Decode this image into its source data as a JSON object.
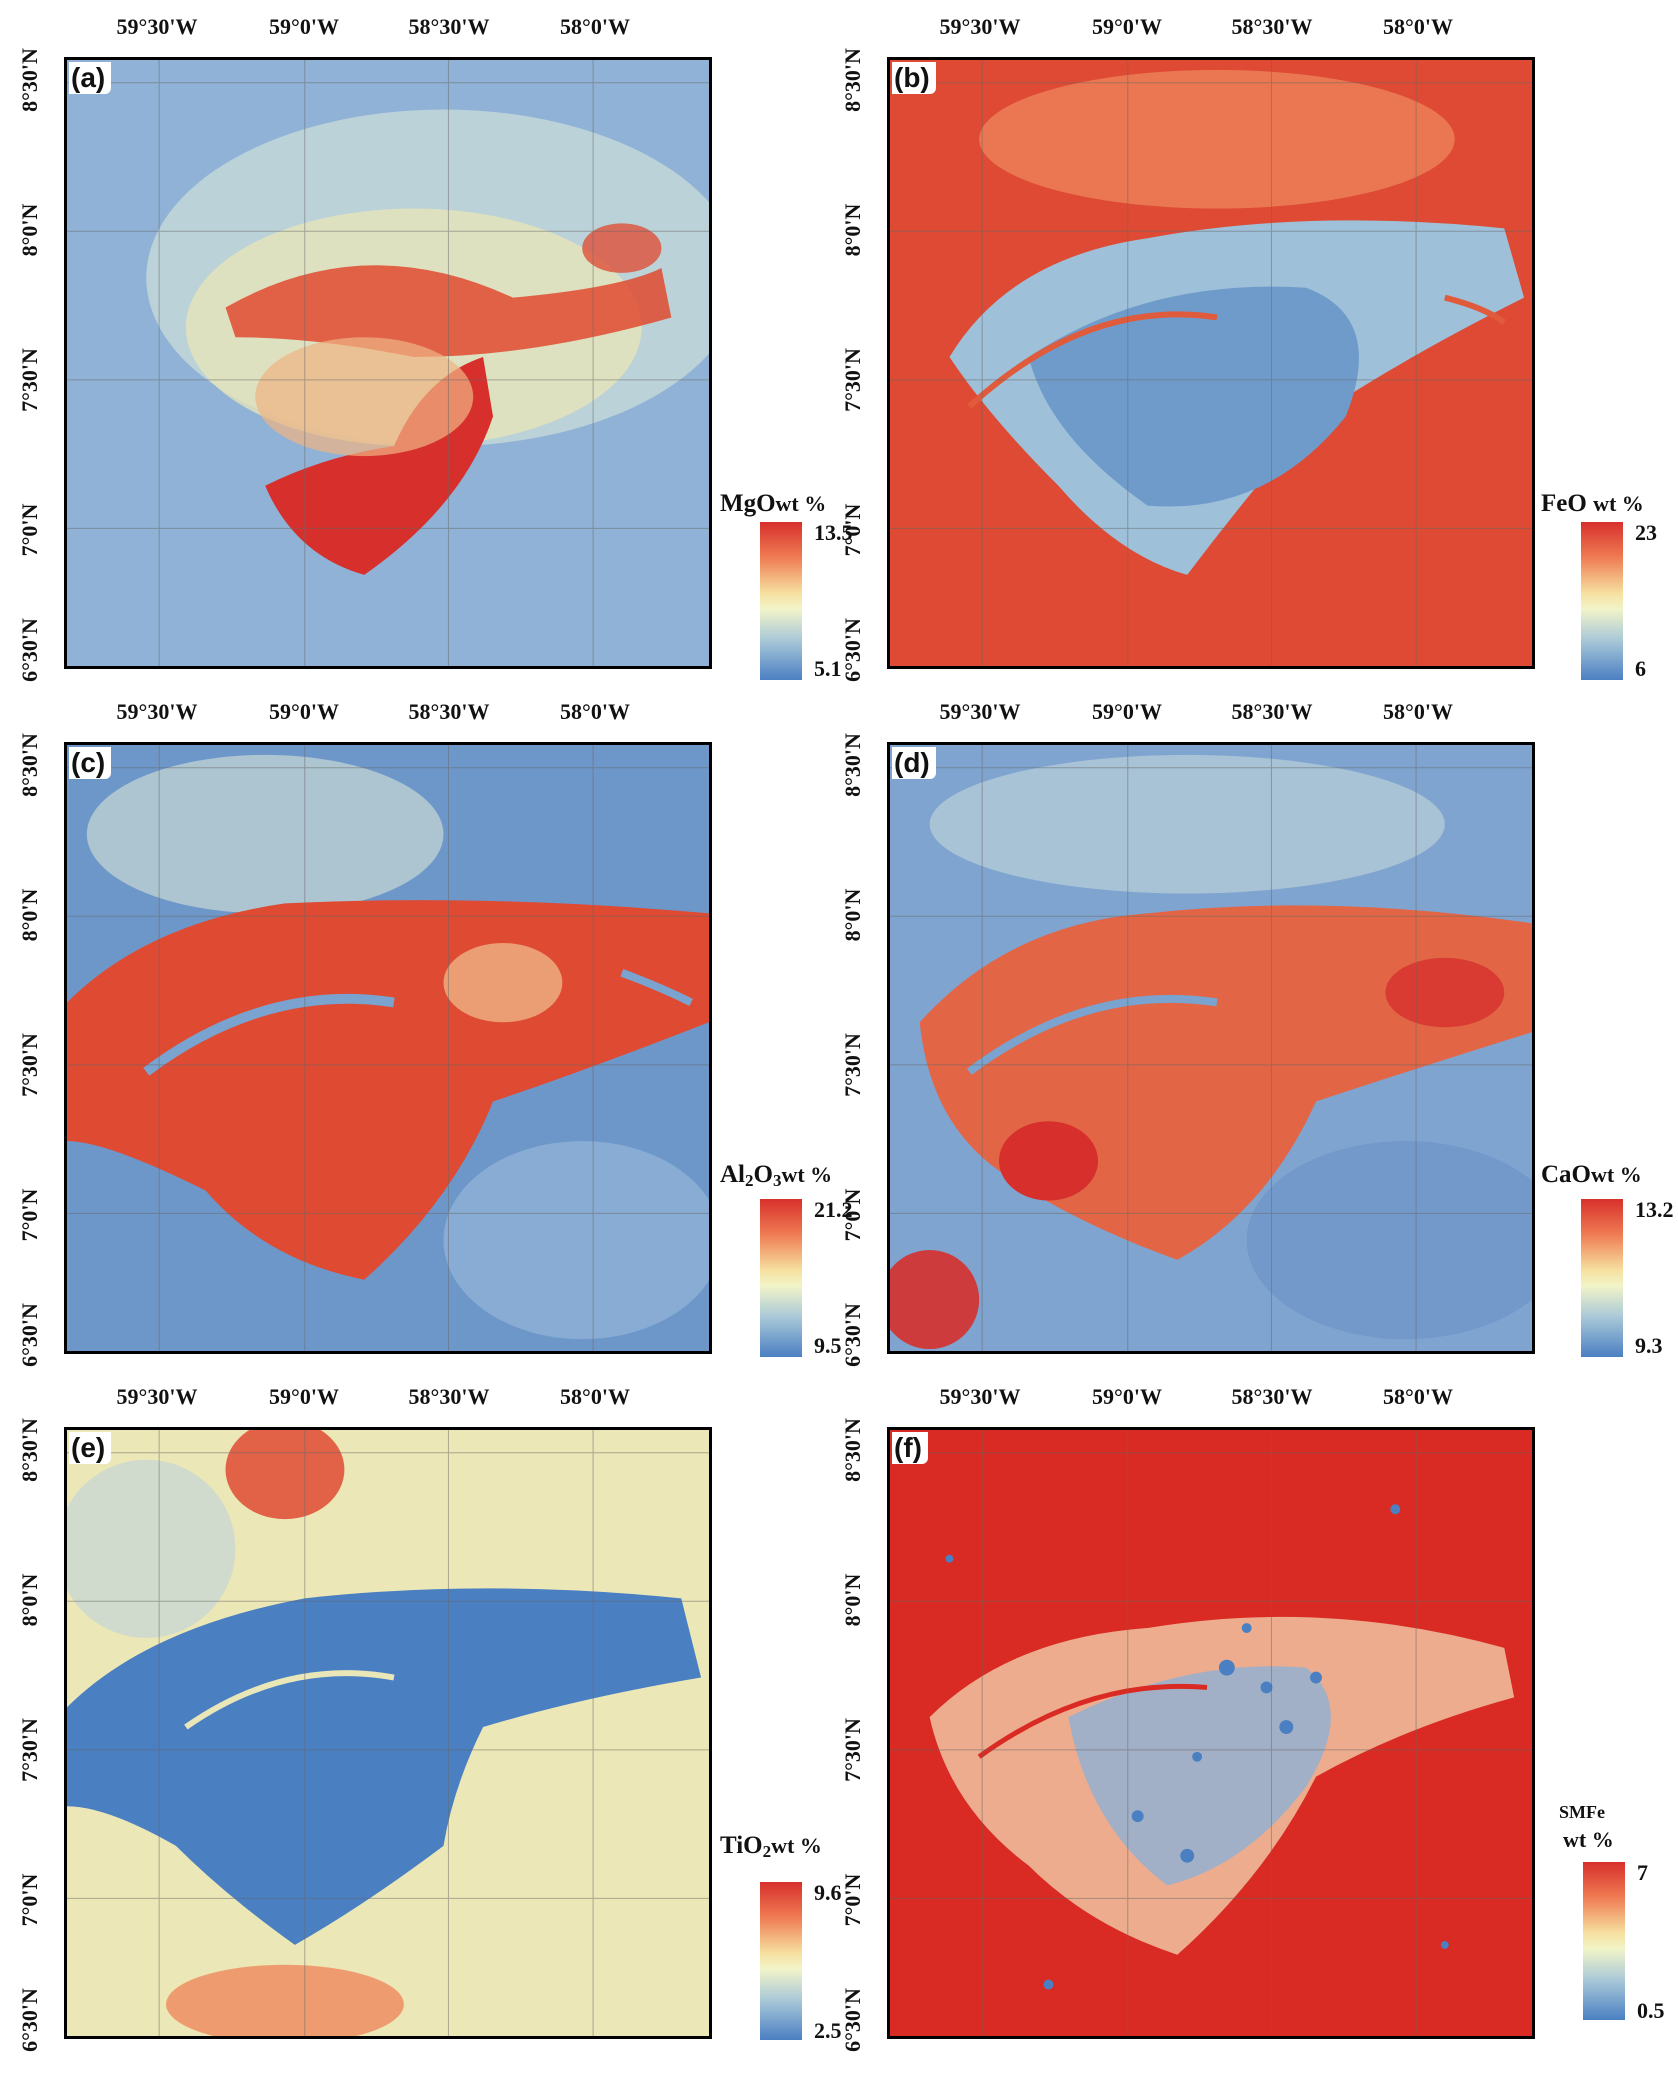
{
  "longitudes": [
    "59°30'W",
    "59°0'W",
    "58°30'W",
    "58°0'W"
  ],
  "latitudes": [
    "8°30'N",
    "8°0'N",
    "7°30'N",
    "7°0'N",
    "6°30'N"
  ],
  "panels": [
    {
      "label": "(a)",
      "oxide": "MgO",
      "unit": "wt %",
      "max": "13.5",
      "min": "5.1",
      "scheme": "low"
    },
    {
      "label": "(b)",
      "oxide": "FeO",
      "unit": "wt %",
      "max": "23",
      "min": "6",
      "scheme": "inverse"
    },
    {
      "label": "(c)",
      "oxide_main": "Al",
      "oxide_sub1": "2",
      "oxide_mid": "O",
      "oxide_sub2": "3",
      "unit": "wt %",
      "max": "21.2",
      "min": "9.5",
      "scheme": "high"
    },
    {
      "label": "(d)",
      "oxide": "CaO",
      "unit": "wt %",
      "max": "13.2",
      "min": "9.3",
      "scheme": "high"
    },
    {
      "label": "(e)",
      "oxide_main": "Ti",
      "oxide_mid": "O",
      "oxide_sub2": "2",
      "unit": "wt %",
      "max": "9.6",
      "min": "2.5",
      "scheme": "inverse"
    },
    {
      "label": "(f)",
      "oxide": "SMFe",
      "unit": "wt %",
      "max": "7",
      "min": "0.5",
      "scheme": "red"
    }
  ],
  "colors": {
    "high": "#d7302c",
    "mid": "#f4e9b4",
    "low": "#4a7fc2",
    "border": "#000000"
  }
}
